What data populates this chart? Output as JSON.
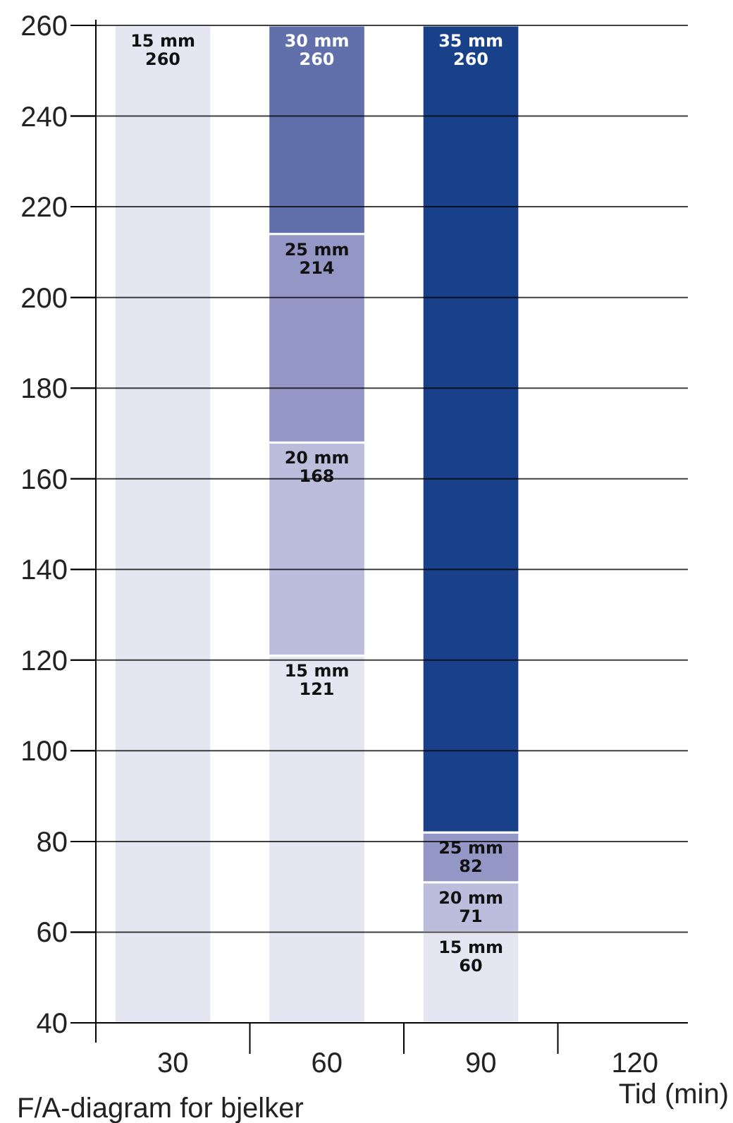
{
  "chart_data": {
    "type": "bar",
    "title": "F/A-diagram for bjelker",
    "xlabel": "Tid (min)",
    "categories": [
      "30",
      "60",
      "90",
      "120"
    ],
    "ylim": [
      40,
      260
    ],
    "yticks": [
      40,
      60,
      80,
      100,
      120,
      140,
      160,
      180,
      200,
      220,
      240,
      260
    ],
    "grid": "y",
    "series": [
      {
        "name": "15 mm",
        "color": "#e6e6f3",
        "base": [
          40,
          40,
          40,
          null
        ],
        "values": [
          220,
          81,
          20,
          null
        ],
        "value_labels": [
          "260",
          "121",
          "60",
          null
        ]
      },
      {
        "name": "20 mm",
        "color": "#bcbddd",
        "base": [
          null,
          121,
          60,
          null
        ],
        "values": [
          null,
          47,
          11,
          null
        ],
        "value_labels": [
          null,
          "168",
          "71",
          null
        ]
      },
      {
        "name": "25 mm",
        "color": "#9497c6",
        "base": [
          null,
          168,
          71,
          null
        ],
        "values": [
          null,
          46,
          11,
          null
        ],
        "value_labels": [
          null,
          "214",
          "82",
          null
        ]
      },
      {
        "name": "30 mm",
        "color": "#6170aa",
        "base": [
          null,
          214,
          null,
          null
        ],
        "values": [
          null,
          46,
          null,
          null
        ],
        "value_labels": [
          null,
          "260",
          null,
          null
        ]
      },
      {
        "name": "35 mm",
        "color": "#18418a",
        "base": [
          null,
          null,
          82,
          null
        ],
        "values": [
          null,
          null,
          178,
          null
        ],
        "value_labels": [
          null,
          null,
          "260",
          null
        ]
      }
    ]
  }
}
